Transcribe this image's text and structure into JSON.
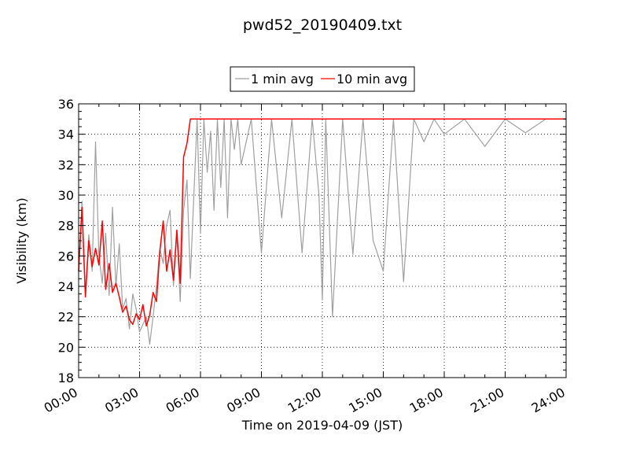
{
  "chart_data": {
    "type": "line",
    "title": "pwd52_20190409.txt",
    "xlabel": "Time on 2019-04-09 (JST)",
    "ylabel": "Visibility (km)",
    "xlim": [
      "00:00",
      "24:00"
    ],
    "ylim": [
      18,
      36
    ],
    "x_ticks": [
      "00:00",
      "03:00",
      "06:00",
      "09:00",
      "12:00",
      "15:00",
      "18:00",
      "21:00",
      "24:00"
    ],
    "y_ticks": [
      "18",
      "20",
      "22",
      "24",
      "26",
      "28",
      "30",
      "32",
      "34",
      "36"
    ],
    "grid": true,
    "legend_position": "top-center",
    "series": [
      {
        "name": "1 min avg",
        "color": "#a0a0a0",
        "x": [
          "00:00",
          "00:10",
          "00:20",
          "00:30",
          "00:40",
          "00:50",
          "01:00",
          "01:10",
          "01:20",
          "01:30",
          "01:40",
          "01:50",
          "02:00",
          "02:10",
          "02:20",
          "02:30",
          "02:40",
          "02:50",
          "03:00",
          "03:10",
          "03:20",
          "03:30",
          "03:40",
          "03:50",
          "04:00",
          "04:10",
          "04:20",
          "04:30",
          "04:40",
          "04:50",
          "05:00",
          "05:10",
          "05:20",
          "05:30",
          "05:40",
          "05:50",
          "06:00",
          "06:10",
          "06:20",
          "06:30",
          "06:40",
          "06:50",
          "07:00",
          "07:10",
          "07:20",
          "07:30",
          "07:40",
          "07:50",
          "08:00",
          "08:30",
          "09:00",
          "09:30",
          "10:00",
          "10:30",
          "11:00",
          "11:30",
          "11:50",
          "12:00",
          "12:10",
          "12:30",
          "13:00",
          "13:30",
          "14:00",
          "14:30",
          "15:00",
          "15:30",
          "16:00",
          "16:30",
          "17:00",
          "17:30",
          "18:00",
          "19:00",
          "20:00",
          "21:00",
          "22:00",
          "23:00",
          "24:00"
        ],
        "y": [
          25.0,
          29.6,
          23.5,
          27.4,
          25.0,
          33.5,
          26.0,
          24.2,
          27.5,
          23.4,
          29.2,
          24.0,
          26.8,
          22.5,
          23.2,
          21.2,
          23.5,
          22.5,
          21.0,
          21.5,
          22.0,
          20.2,
          22.0,
          24.0,
          26.5,
          25.5,
          28.0,
          29.0,
          24.0,
          27.5,
          23.0,
          29.0,
          31.0,
          24.5,
          29.8,
          35.0,
          27.5,
          35.0,
          31.5,
          34.2,
          29.0,
          35.0,
          30.5,
          35.0,
          28.5,
          35.0,
          33.0,
          35.0,
          32.0,
          35.0,
          26.2,
          35.0,
          28.5,
          35.0,
          26.2,
          35.0,
          30.0,
          23.1,
          35.0,
          22.0,
          35.0,
          26.1,
          35.0,
          27.0,
          25.0,
          35.0,
          24.3,
          35.0,
          33.5,
          35.0,
          34.0,
          35.0,
          33.2,
          35.0,
          34.1,
          35.0,
          35.0
        ]
      },
      {
        "name": "10 min avg",
        "color": "#ff0000",
        "x": [
          "00:00",
          "00:10",
          "00:20",
          "00:30",
          "00:40",
          "00:50",
          "01:00",
          "01:10",
          "01:20",
          "01:30",
          "01:40",
          "01:50",
          "02:00",
          "02:10",
          "02:20",
          "02:30",
          "02:40",
          "02:50",
          "03:00",
          "03:10",
          "03:20",
          "03:30",
          "03:40",
          "03:50",
          "04:00",
          "04:10",
          "04:20",
          "04:30",
          "04:40",
          "04:50",
          "05:00",
          "05:10",
          "05:20",
          "05:30",
          "05:40",
          "05:50",
          "06:00",
          "06:10",
          "06:20",
          "06:30",
          "24:00"
        ],
        "y": [
          25.0,
          29.2,
          23.3,
          27.0,
          25.3,
          26.5,
          25.4,
          28.3,
          23.8,
          25.5,
          23.6,
          24.2,
          23.3,
          22.3,
          22.7,
          21.8,
          21.5,
          22.2,
          21.8,
          22.8,
          21.4,
          22.1,
          23.6,
          23.0,
          26.3,
          28.3,
          25.0,
          26.4,
          24.4,
          27.7,
          24.2,
          32.5,
          33.4,
          35.0,
          35.0,
          35.0,
          35.0,
          35.0,
          35.0,
          35.0,
          35.0
        ]
      }
    ]
  }
}
